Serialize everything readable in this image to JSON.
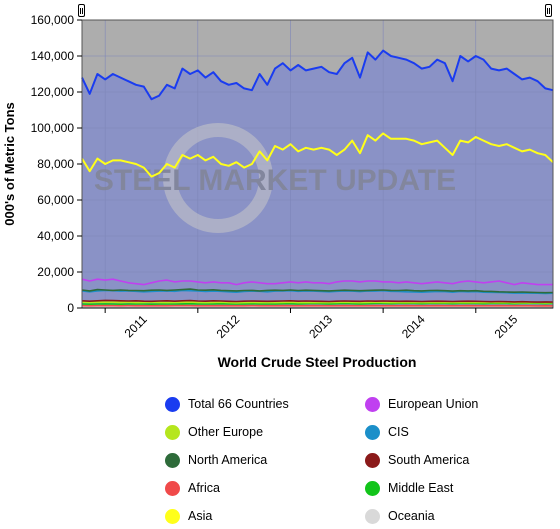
{
  "chart_data": {
    "type": "line",
    "title": "",
    "xlabel": "World Crude Steel Production",
    "ylabel": "000's of Metric Tons",
    "ylim": [
      0,
      160000
    ],
    "y_ticks": [
      0,
      20000,
      40000,
      60000,
      80000,
      100000,
      120000,
      140000,
      160000
    ],
    "y_tick_labels": [
      "0",
      "20,000",
      "40,000",
      "60,000",
      "80,000",
      "100,000",
      "120,000",
      "140,000",
      "160,000"
    ],
    "x_tick_labels": [
      "2011",
      "2012",
      "2013",
      "2014",
      "2015"
    ],
    "x_start": "2010-10",
    "x": [
      "2010-10",
      "2010-11",
      "2010-12",
      "2011-01",
      "2011-02",
      "2011-03",
      "2011-04",
      "2011-05",
      "2011-06",
      "2011-07",
      "2011-08",
      "2011-09",
      "2011-10",
      "2011-11",
      "2011-12",
      "2012-01",
      "2012-02",
      "2012-03",
      "2012-04",
      "2012-05",
      "2012-06",
      "2012-07",
      "2012-08",
      "2012-09",
      "2012-10",
      "2012-11",
      "2012-12",
      "2013-01",
      "2013-02",
      "2013-03",
      "2013-04",
      "2013-05",
      "2013-06",
      "2013-07",
      "2013-08",
      "2013-09",
      "2013-10",
      "2013-11",
      "2013-12",
      "2014-01",
      "2014-02",
      "2014-03",
      "2014-04",
      "2014-05",
      "2014-06",
      "2014-07",
      "2014-08",
      "2014-09",
      "2014-10",
      "2014-11",
      "2014-12",
      "2015-01",
      "2015-02",
      "2015-03",
      "2015-04",
      "2015-05",
      "2015-06",
      "2015-07",
      "2015-08",
      "2015-09",
      "2015-10",
      "2015-11"
    ],
    "grid": true,
    "legend_position": "bottom",
    "watermark": "STEEL MARKET UPDATE",
    "series": [
      {
        "name": "Total 66 Countries",
        "color": "#1a3cf0",
        "values": [
          128000,
          119000,
          130000,
          127000,
          130000,
          128000,
          126000,
          124000,
          123000,
          116000,
          118000,
          124000,
          122000,
          133000,
          130000,
          132000,
          128000,
          131000,
          126000,
          124000,
          125000,
          122000,
          121000,
          130000,
          124000,
          133000,
          136000,
          132000,
          135000,
          132000,
          133000,
          134000,
          131000,
          130000,
          136000,
          139000,
          128000,
          142000,
          138000,
          143000,
          140000,
          139000,
          138000,
          136000,
          133000,
          134000,
          138000,
          136000,
          126000,
          140000,
          137000,
          140000,
          138000,
          133000,
          132000,
          133000,
          130000,
          127000,
          128000,
          126000,
          122000,
          121000
        ]
      },
      {
        "name": "European Union",
        "color": "#c040f0",
        "values": [
          16000,
          15000,
          16000,
          15500,
          16000,
          15000,
          14000,
          13500,
          13000,
          14000,
          15000,
          15500,
          14500,
          15000,
          15000,
          14500,
          14000,
          14500,
          14000,
          14000,
          13000,
          14000,
          14500,
          14000,
          13500,
          13500,
          14000,
          14500,
          14000,
          14500,
          14000,
          14000,
          13500,
          14500,
          15000,
          15000,
          14500,
          15000,
          15000,
          14500,
          14500,
          14000,
          14500,
          14000,
          13500,
          14000,
          14500,
          14000,
          13500,
          14500,
          15000,
          14500,
          14000,
          14500,
          15000,
          14000,
          13000,
          14000,
          13500,
          13000,
          13000,
          13000
        ]
      },
      {
        "name": "Other Europe",
        "color": "#b5e61d",
        "values": [
          3200,
          3100,
          3200,
          3300,
          3200,
          3100,
          3200,
          3000,
          3100,
          3200,
          3100,
          3000,
          3100,
          3200,
          3300,
          3100,
          3000,
          3100,
          3200,
          3000,
          2900,
          3000,
          3100,
          3000,
          3100,
          3000,
          3100,
          3200,
          3000,
          3100,
          3000,
          3100,
          3000,
          3100,
          3200,
          3100,
          3000,
          3100,
          3200,
          3100,
          3000,
          3100,
          3000,
          3100,
          3000,
          3100,
          3000,
          3100,
          3000,
          3100,
          3000,
          3100,
          3000,
          3100,
          3000,
          3100,
          2900,
          3000,
          2900,
          3000,
          2900,
          3000
        ]
      },
      {
        "name": "CIS",
        "color": "#1b8fc9",
        "values": [
          9500,
          9000,
          9500,
          9800,
          9600,
          9400,
          9500,
          9300,
          9000,
          9200,
          9400,
          9500,
          9300,
          9800,
          9600,
          9500,
          9200,
          9400,
          9300,
          9000,
          8800,
          9200,
          9400,
          9300,
          9000,
          9400,
          9500,
          9600,
          9300,
          9500,
          9400,
          9200,
          9000,
          9300,
          9500,
          9400,
          9100,
          9500,
          9400,
          9600,
          9300,
          9200,
          9000,
          8900,
          8800,
          9000,
          9200,
          9100,
          8800,
          9200,
          9000,
          9100,
          8800,
          8700,
          8600,
          8500,
          8300,
          8400,
          8300,
          8200,
          8100,
          8200
        ]
      },
      {
        "name": "North America",
        "color": "#2e6b3a",
        "values": [
          10000,
          9500,
          10200,
          10000,
          9800,
          10000,
          9800,
          9700,
          9600,
          9900,
          10000,
          9800,
          10000,
          10200,
          10500,
          10000,
          9900,
          10100,
          9800,
          9600,
          9500,
          9700,
          9800,
          9500,
          9800,
          9900,
          9800,
          10000,
          9700,
          9900,
          9800,
          9600,
          9500,
          9700,
          9900,
          9800,
          9600,
          9800,
          9900,
          10000,
          9800,
          9700,
          9900,
          9600,
          9500,
          9700,
          9800,
          9600,
          9400,
          9600,
          9500,
          9600,
          9300,
          9200,
          9000,
          8900,
          8800,
          8900,
          8700,
          8600,
          8500,
          8600
        ]
      },
      {
        "name": "South America",
        "color": "#8b1a1a",
        "values": [
          4000,
          3800,
          4000,
          4200,
          4100,
          4000,
          3900,
          4000,
          3800,
          3700,
          3900,
          4000,
          3800,
          4000,
          4100,
          3900,
          3800,
          4000,
          3900,
          3700,
          3600,
          3800,
          3900,
          3800,
          3700,
          3800,
          3900,
          4000,
          3800,
          3900,
          3800,
          3700,
          3600,
          3800,
          3900,
          3800,
          3700,
          3900,
          3800,
          3900,
          3800,
          3700,
          3800,
          3700,
          3600,
          3700,
          3800,
          3700,
          3600,
          3700,
          3800,
          3700,
          3600,
          3500,
          3600,
          3500,
          3400,
          3500,
          3400,
          3300,
          3400,
          3300
        ]
      },
      {
        "name": "Africa",
        "color": "#f04a4a",
        "values": [
          1300,
          1250,
          1300,
          1350,
          1300,
          1250,
          1300,
          1250,
          1200,
          1250,
          1300,
          1250,
          1300,
          1350,
          1300,
          1250,
          1200,
          1250,
          1300,
          1250,
          1200,
          1250,
          1300,
          1250,
          1200,
          1250,
          1300,
          1250,
          1200,
          1250,
          1300,
          1250,
          1200,
          1250,
          1300,
          1250,
          1200,
          1250,
          1300,
          1250,
          1200,
          1250,
          1300,
          1250,
          1200,
          1250,
          1300,
          1250,
          1200,
          1250,
          1300,
          1250,
          1200,
          1250,
          1300,
          1250,
          1200,
          1250,
          1200,
          1150,
          1200,
          1150
        ]
      },
      {
        "name": "Middle East",
        "color": "#12c41a",
        "values": [
          2200,
          2100,
          2200,
          2300,
          2200,
          2100,
          2200,
          2300,
          2200,
          2100,
          2200,
          2300,
          2200,
          2300,
          2400,
          2300,
          2200,
          2300,
          2400,
          2300,
          2200,
          2300,
          2400,
          2300,
          2200,
          2300,
          2400,
          2400,
          2300,
          2400,
          2500,
          2400,
          2300,
          2400,
          2500,
          2400,
          2300,
          2400,
          2500,
          2500,
          2400,
          2500,
          2600,
          2500,
          2400,
          2500,
          2600,
          2500,
          2400,
          2500,
          2600,
          2500,
          2400,
          2500,
          2600,
          2500,
          2400,
          2500,
          2600,
          2500,
          2400,
          2500
        ]
      },
      {
        "name": "Asia",
        "color": "#ffff1a",
        "values": [
          83000,
          76000,
          83000,
          80000,
          82000,
          82000,
          81000,
          80000,
          78000,
          73000,
          75000,
          80000,
          78000,
          85000,
          83000,
          85000,
          82000,
          84000,
          80000,
          79000,
          81000,
          78000,
          80000,
          87000,
          82000,
          90000,
          88000,
          91000,
          87000,
          89000,
          88000,
          89000,
          88000,
          85000,
          88000,
          93000,
          86000,
          96000,
          93000,
          97000,
          94000,
          94000,
          94000,
          93000,
          91000,
          92000,
          93000,
          89000,
          85000,
          93000,
          92000,
          95000,
          93000,
          91000,
          90000,
          91000,
          89000,
          87000,
          88000,
          86000,
          85000,
          81000
        ]
      },
      {
        "name": "Oceania",
        "color": "#d9d9d9",
        "values": [
          700,
          690,
          700,
          720,
          700,
          690,
          700,
          690,
          680,
          690,
          700,
          690,
          700,
          710,
          700,
          690,
          680,
          690,
          700,
          690,
          680,
          690,
          700,
          690,
          680,
          690,
          700,
          690,
          680,
          690,
          700,
          690,
          680,
          690,
          700,
          690,
          680,
          690,
          700,
          690,
          680,
          690,
          700,
          690,
          680,
          690,
          700,
          690,
          680,
          690,
          700,
          690,
          680,
          690,
          700,
          690,
          680,
          690,
          680,
          670,
          680,
          670
        ]
      }
    ]
  }
}
